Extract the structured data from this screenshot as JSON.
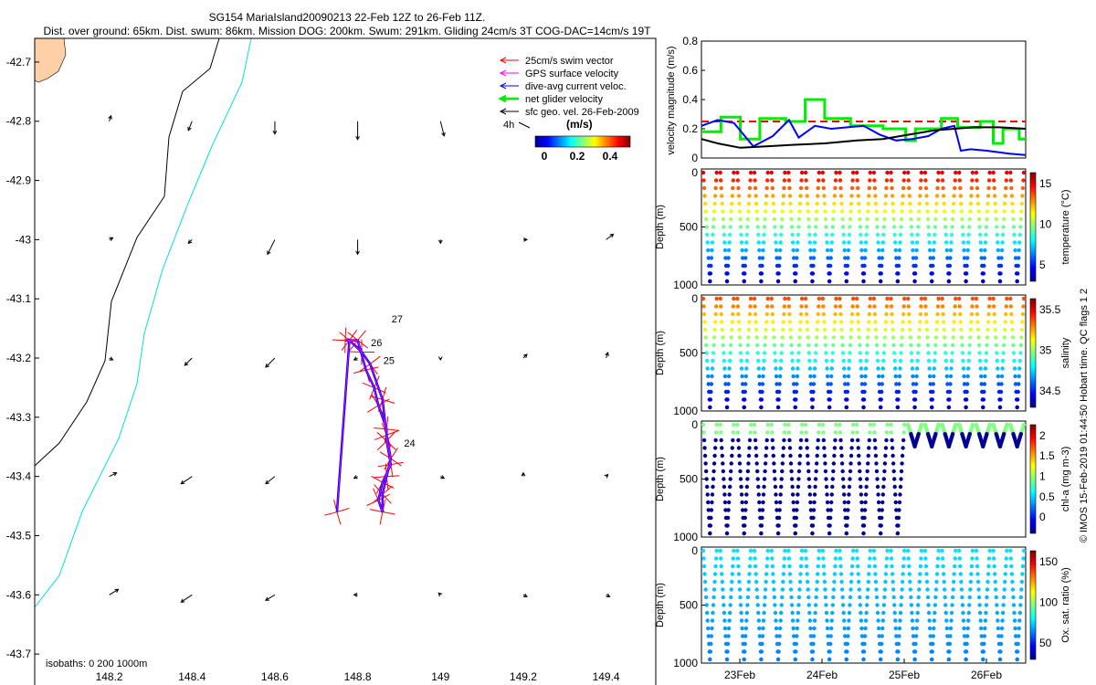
{
  "header": {
    "line1": "SG154 MariaIsland20090213 22-Feb 12Z to 26-Feb 11Z.",
    "line2": "Dist. over ground: 65km. Dist. swum: 86km. Mission DOG: 200km. Swum: 291km. Gliding 24cm/s 3T COG-DAC=14cm/s 19T"
  },
  "map": {
    "xticks": [
      "148.2",
      "148.4",
      "148.6",
      "148.8",
      "149",
      "149.2",
      "149.4"
    ],
    "yticks": [
      "-42.7",
      "-42.8",
      "-42.9",
      "-43",
      "-43.1",
      "-43.2",
      "-43.3",
      "-43.4",
      "-43.5",
      "-43.6",
      "-43.7"
    ],
    "isobaths_label": "isobaths: 0   200  1000m",
    "day_labels": [
      "27",
      "26",
      "25",
      "24"
    ],
    "legend": {
      "items": [
        "25cm/s swim vector",
        "GPS surface velocity",
        "dive-avg current veloc.",
        "net glider velocity",
        "sfc geo. vel. 26-Feb-2009"
      ],
      "item_colors": [
        "#ff0000",
        "#ff00ff",
        "#0000ff",
        "#00ee00",
        "#000000"
      ],
      "scale_label": "4h",
      "colorbar_title": "(m/s)",
      "colorbar_ticks": [
        "0",
        "0.2",
        "0.4"
      ]
    }
  },
  "velocity_panel": {
    "ylabel": "velocity magnitude (m/s)",
    "yticks": [
      "0",
      "0.2",
      "0.4",
      "0.6",
      "0.8"
    ]
  },
  "profile_panels": [
    {
      "name": "temperature",
      "cbar_label": "temperature (°C)",
      "cbar_ticks": [
        "5",
        "10",
        "15"
      ],
      "yticks": [
        "0",
        "500",
        "1000"
      ],
      "ylabel": "Depth (m)"
    },
    {
      "name": "salinity",
      "cbar_label": "salinity",
      "cbar_ticks": [
        "34.5",
        "35",
        "35.5"
      ],
      "yticks": [
        "0",
        "500",
        "1000"
      ],
      "ylabel": "Depth (m)"
    },
    {
      "name": "chl-a",
      "cbar_label": "chl-a (mg m-3)",
      "cbar_ticks": [
        "0",
        "0.5",
        "1",
        "1.5",
        "2"
      ],
      "yticks": [
        "0",
        "500",
        "1000"
      ],
      "ylabel": "Depth (m)"
    },
    {
      "name": "oxygen",
      "cbar_label": "Ox. sat. ratio (%)",
      "cbar_ticks": [
        "50",
        "100",
        "150"
      ],
      "yticks": [
        "0",
        "500",
        "1000"
      ],
      "ylabel": "Depth (m)"
    }
  ],
  "xaxis_dates": [
    "23Feb",
    "24Feb",
    "25Feb",
    "26Feb"
  ],
  "footer": "© IMOS 15-Feb-2019 01:44:50 Hobart time. QC flags 1  2",
  "chart_data": [
    {
      "type": "scatter",
      "title": "SG154 MariaIsland20090213 22-Feb 12Z to 26-Feb 11Z.",
      "xlabel": "",
      "ylabel": "",
      "xlim": [
        148.02,
        149.52
      ],
      "ylim": [
        -43.76,
        -42.66
      ],
      "track": {
        "lon": [
          148.77,
          148.8,
          148.82,
          148.84,
          148.85,
          148.87,
          148.87,
          148.88,
          148.86,
          148.85,
          148.86,
          148.86,
          148.87,
          148.88,
          148.87,
          148.86,
          148.83,
          148.81,
          148.78,
          148.75
        ],
        "lat": [
          -43.17,
          -43.17,
          -43.22,
          -43.25,
          -43.28,
          -43.32,
          -43.34,
          -43.38,
          -43.41,
          -43.44,
          -43.46,
          -43.43,
          -43.4,
          -43.37,
          -43.33,
          -43.27,
          -43.21,
          -43.19,
          -43.17,
          -43.46
        ]
      },
      "day_label_positions": [
        {
          "label": "27",
          "lon": 148.86,
          "lat": -43.14
        },
        {
          "label": "26",
          "lon": 148.81,
          "lat": -43.18
        },
        {
          "label": "25",
          "lon": 148.84,
          "lat": -43.21
        },
        {
          "label": "24",
          "lon": 148.89,
          "lat": -43.35
        }
      ],
      "current_vectors_u_v": [
        [
          148.2,
          -42.8,
          0.5,
          1.5
        ],
        [
          148.4,
          -42.8,
          -1,
          -2.5
        ],
        [
          148.6,
          -42.8,
          0,
          -3.5
        ],
        [
          148.8,
          -42.8,
          0,
          -5
        ],
        [
          149,
          -42.8,
          1,
          -4
        ],
        [
          148.2,
          -43.0,
          1,
          0.5
        ],
        [
          148.4,
          -43.0,
          -1,
          -1
        ],
        [
          148.6,
          -43.0,
          -2,
          -4
        ],
        [
          148.8,
          -43.0,
          0,
          -4
        ],
        [
          149,
          -43.0,
          0,
          -1
        ],
        [
          149.2,
          -43.0,
          1,
          0
        ],
        [
          149.4,
          -43.0,
          2,
          1.5
        ],
        [
          148.2,
          -43.2,
          1,
          -0.5
        ],
        [
          148.4,
          -43.2,
          -2,
          -2
        ],
        [
          148.6,
          -43.2,
          -2.5,
          -2.5
        ],
        [
          148.8,
          -43.2,
          -1,
          -0.5
        ],
        [
          149,
          -43.2,
          0,
          -0.5
        ],
        [
          149.2,
          -43.2,
          1,
          1
        ],
        [
          149.4,
          -43.2,
          0.5,
          1.5
        ],
        [
          148.2,
          -43.4,
          2,
          1
        ],
        [
          148.4,
          -43.4,
          -3,
          -2
        ],
        [
          148.6,
          -43.4,
          -2.5,
          -2
        ],
        [
          148.8,
          -43.4,
          -1,
          -0.5
        ],
        [
          149,
          -43.4,
          1,
          -0.5
        ],
        [
          149.2,
          -43.4,
          0,
          1
        ],
        [
          149.4,
          -43.4,
          0.5,
          0.5
        ],
        [
          148.2,
          -43.6,
          2.5,
          1.5
        ],
        [
          148.4,
          -43.6,
          -3,
          -2
        ],
        [
          148.6,
          -43.6,
          -2.5,
          -1.5
        ],
        [
          148.8,
          -43.6,
          -1,
          0
        ],
        [
          149,
          -43.6,
          -0.5,
          0.5
        ],
        [
          149.2,
          -43.6,
          1,
          -0.5
        ],
        [
          149.4,
          -43.6,
          1,
          -0.5
        ]
      ]
    },
    {
      "type": "line",
      "ylabel": "velocity magnitude (m/s)",
      "ylim": [
        0,
        0.8
      ],
      "xlim": [
        0,
        1
      ],
      "series": [
        {
          "color": "#ff0000",
          "style": "dashed",
          "x": [
            0,
            1
          ],
          "y": [
            0.25,
            0.25
          ]
        },
        {
          "color": "#00ee00",
          "x": [
            0,
            0.06,
            0.06,
            0.12,
            0.12,
            0.18,
            0.18,
            0.26,
            0.26,
            0.32,
            0.32,
            0.38,
            0.38,
            0.46,
            0.46,
            0.56,
            0.56,
            0.63,
            0.63,
            0.66,
            0.66,
            0.74,
            0.74,
            0.79,
            0.79,
            0.86,
            0.86,
            0.9,
            0.9,
            0.93,
            0.93,
            0.98,
            0.98,
            1.0
          ],
          "y": [
            0.18,
            0.18,
            0.28,
            0.28,
            0.13,
            0.13,
            0.27,
            0.27,
            0.25,
            0.25,
            0.4,
            0.4,
            0.27,
            0.27,
            0.22,
            0.22,
            0.2,
            0.2,
            0.12,
            0.12,
            0.2,
            0.2,
            0.27,
            0.27,
            0.21,
            0.21,
            0.25,
            0.25,
            0.1,
            0.1,
            0.2,
            0.2,
            0.13,
            0.13
          ]
        },
        {
          "color": "#0000ff",
          "x": [
            0,
            0.05,
            0.1,
            0.16,
            0.22,
            0.27,
            0.3,
            0.35,
            0.4,
            0.45,
            0.5,
            0.55,
            0.6,
            0.65,
            0.7,
            0.74,
            0.78,
            0.8,
            0.83,
            0.88,
            0.95,
            1.0
          ],
          "y": [
            0.22,
            0.26,
            0.24,
            0.08,
            0.15,
            0.26,
            0.14,
            0.22,
            0.2,
            0.21,
            0.22,
            0.16,
            0.12,
            0.13,
            0.15,
            0.2,
            0.22,
            0.05,
            0.06,
            0.05,
            0.03,
            0.02
          ]
        },
        {
          "color": "#000000",
          "x": [
            0,
            0.05,
            0.12,
            0.2,
            0.28,
            0.38,
            0.48,
            0.56,
            0.64,
            0.72,
            0.78,
            0.84,
            0.92,
            1.0
          ],
          "y": [
            0.13,
            0.1,
            0.07,
            0.08,
            0.09,
            0.1,
            0.12,
            0.13,
            0.16,
            0.19,
            0.2,
            0.21,
            0.21,
            0.2
          ]
        }
      ]
    },
    {
      "type": "scatter",
      "xlabel": "",
      "ylabel": "Depth (m)",
      "ylim": [
        1000,
        0
      ],
      "x": [
        "23Feb",
        "24Feb",
        "25Feb",
        "26Feb"
      ],
      "dives_per_panel": 19,
      "dive_max_depth_m": 1000
    }
  ]
}
